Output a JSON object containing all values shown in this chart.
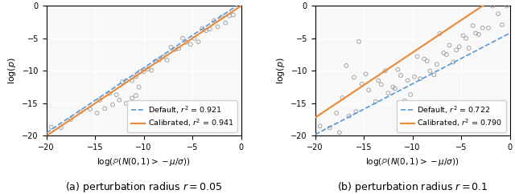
{
  "subplot_a": {
    "default_r2": "0.921",
    "calibrated_r2": "0.941",
    "default_slope": 1.0,
    "default_intercept": 0.45,
    "calibrated_slope": 1.0,
    "calibrated_intercept": 0.0,
    "caption": "(a) perturbation radius $r = 0.05$"
  },
  "subplot_b": {
    "default_r2": "0.722",
    "calibrated_r2": "0.790",
    "default_slope": 0.78,
    "default_intercept": -4.2,
    "calibrated_slope": 1.0,
    "calibrated_intercept": 2.8,
    "caption": "(b) perturbation radius $r = 0.1$"
  },
  "xlim": [
    -20,
    0
  ],
  "ylim": [
    -20,
    0
  ],
  "xticks": [
    -20,
    -15,
    -10,
    -5,
    0
  ],
  "yticks": [
    -20,
    -15,
    -10,
    -5,
    0
  ],
  "xlabel": "log($\\mathbb{P}(N(0, 1) > -\\mu/\\sigma)$)",
  "ylabel": "log($p$)",
  "scatter_color": "#999999",
  "scatter_size": 12,
  "default_color": "#5599dd",
  "calibrated_color": "#ee8833",
  "figsize": [
    6.4,
    2.42
  ],
  "dpi": 100,
  "bg_color": "#f8f8f8"
}
